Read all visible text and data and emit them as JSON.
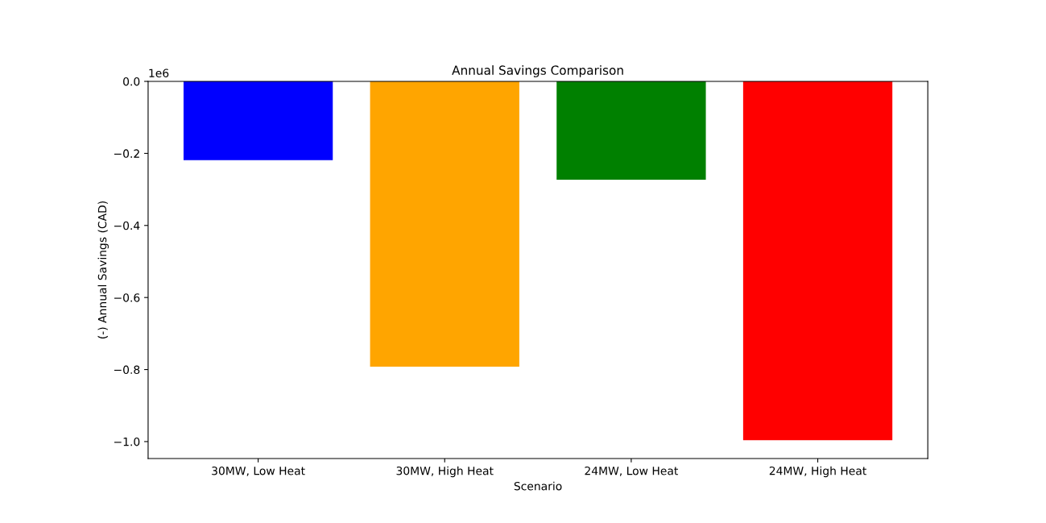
{
  "chart_data": {
    "type": "bar",
    "title": "Annual Savings Comparison",
    "xlabel": "Scenario",
    "ylabel": "(-) Annual Savings (CAD)",
    "categories": [
      "30MW, Low Heat",
      "30MW, High Heat",
      "24MW, Low Heat",
      "24MW, High Heat"
    ],
    "values": [
      -0.219,
      -0.792,
      -0.273,
      -0.996
    ],
    "colors": [
      "#0000ff",
      "#ffa500",
      "#008000",
      "#ff0000"
    ],
    "ylim": [
      -1.047,
      0
    ],
    "yticks": [
      {
        "value": -1,
        "label": "−1.0"
      },
      -0.8,
      -0.6,
      -0.4,
      -0.2,
      {
        "value": 0,
        "label": "0.0"
      }
    ],
    "annotations": [
      "1e6"
    ],
    "grid": false,
    "legend": false
  }
}
